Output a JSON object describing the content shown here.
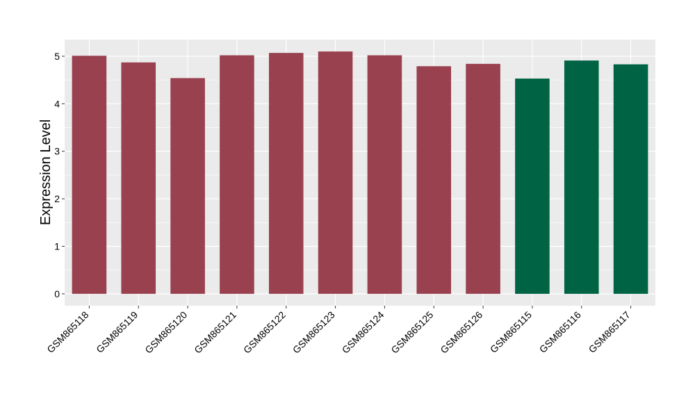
{
  "chart_data": {
    "type": "bar",
    "title": "",
    "xlabel": "",
    "ylabel": "Expression Level",
    "ylim": [
      -0.25,
      5.35
    ],
    "yticks": [
      0,
      1,
      2,
      3,
      4,
      5
    ],
    "grid": true,
    "legend": "none",
    "categories": [
      "GSM865118",
      "GSM865119",
      "GSM865120",
      "GSM865121",
      "GSM865122",
      "GSM865123",
      "GSM865124",
      "GSM865125",
      "GSM865126",
      "GSM865115",
      "GSM865116",
      "GSM865117"
    ],
    "values": [
      5.01,
      4.87,
      4.54,
      5.02,
      5.07,
      5.1,
      5.02,
      4.79,
      4.84,
      4.53,
      4.91,
      4.83
    ],
    "bar_colors": [
      "#99414F",
      "#99414F",
      "#99414F",
      "#99414F",
      "#99414F",
      "#99414F",
      "#99414F",
      "#99414F",
      "#99414F",
      "#006444",
      "#006444",
      "#006444"
    ]
  },
  "colors": {
    "panel_background": "#EBEBEB",
    "gridline": "#FFFFFF",
    "group_a": "#99414F",
    "group_b": "#006444"
  }
}
